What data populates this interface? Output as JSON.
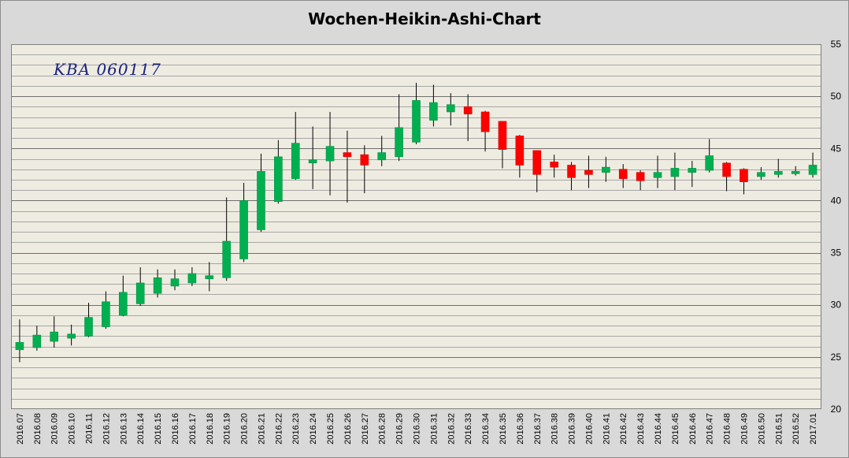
{
  "chart_data": {
    "type": "candlestick",
    "title": "Wochen-Heikin-Ashi-Chart",
    "annotation": "KBA 060117",
    "ylim": [
      20,
      55
    ],
    "y_ticks": [
      20,
      25,
      30,
      35,
      40,
      45,
      50,
      55
    ],
    "y_axis_side": "right",
    "grid": true,
    "colors": {
      "up": "#00b050",
      "down": "#ff0000",
      "background": "#eeece1",
      "frame": "#d9d9d9",
      "grid": "#7f7f7f"
    },
    "categories": [
      "2016.07",
      "2016.08",
      "2016.09",
      "2016.10",
      "2016.11",
      "2016.12",
      "2016.13",
      "2016.14",
      "2016.15",
      "2016.16",
      "2016.17",
      "2016.18",
      "2016.19",
      "2016.20",
      "2016.21",
      "2016.22",
      "2016.23",
      "2016.24",
      "2016.25",
      "2016.26",
      "2016.27",
      "2016.28",
      "2016.29",
      "2016.30",
      "2016.31",
      "2016.32",
      "2016.33",
      "2016.34",
      "2016.35",
      "2016.36",
      "2016.37",
      "2016.38",
      "2016.39",
      "2016.40",
      "2016.41",
      "2016.42",
      "2016.43",
      "2016.44",
      "2016.45",
      "2016.46",
      "2016.47",
      "2016.48",
      "2016.49",
      "2016.50",
      "2016.51",
      "2016.52",
      "2017.01"
    ],
    "open": [
      25.7,
      25.9,
      26.5,
      26.8,
      27.0,
      27.9,
      29.0,
      30.1,
      31.1,
      31.8,
      32.1,
      32.5,
      32.6,
      34.4,
      37.2,
      39.9,
      42.1,
      43.6,
      43.8,
      44.6,
      44.4,
      43.9,
      44.2,
      45.6,
      47.7,
      48.5,
      49.0,
      48.5,
      47.6,
      46.2,
      44.8,
      43.7,
      43.4,
      42.9,
      42.7,
      43.0,
      42.7,
      42.2,
      42.3,
      42.7,
      42.9,
      43.6,
      43.0,
      42.3,
      42.5,
      42.6,
      42.5
    ],
    "close": [
      26.4,
      27.1,
      27.4,
      27.2,
      28.8,
      30.3,
      31.2,
      32.1,
      32.6,
      32.5,
      33.0,
      32.8,
      36.1,
      40.0,
      42.8,
      44.2,
      45.5,
      43.9,
      45.2,
      44.2,
      43.4,
      44.6,
      47.0,
      49.6,
      49.4,
      49.2,
      48.3,
      46.6,
      44.9,
      43.4,
      42.5,
      43.2,
      42.2,
      42.5,
      43.2,
      42.1,
      41.9,
      42.7,
      43.1,
      43.1,
      44.3,
      42.3,
      41.8,
      42.7,
      42.8,
      42.8,
      43.4
    ],
    "high": [
      28.6,
      28.0,
      28.9,
      28.1,
      30.2,
      31.3,
      32.8,
      33.6,
      33.4,
      33.4,
      33.6,
      34.1,
      40.3,
      41.7,
      44.5,
      45.8,
      48.5,
      47.1,
      48.5,
      46.7,
      45.3,
      46.2,
      50.2,
      51.3,
      51.1,
      50.3,
      50.2,
      48.6,
      47.6,
      46.3,
      44.8,
      44.4,
      43.7,
      44.3,
      44.2,
      43.5,
      42.9,
      44.3,
      44.6,
      43.8,
      45.9,
      43.7,
      43.1,
      43.2,
      44.0,
      43.3,
      44.6
    ],
    "low": [
      24.5,
      25.6,
      25.9,
      26.1,
      26.9,
      27.7,
      28.9,
      29.9,
      30.7,
      31.4,
      31.8,
      31.3,
      32.3,
      34.1,
      37.0,
      39.7,
      42.0,
      41.1,
      40.5,
      39.8,
      40.7,
      43.3,
      43.8,
      45.4,
      47.1,
      47.2,
      45.7,
      44.7,
      43.1,
      42.2,
      40.8,
      42.2,
      41.0,
      41.2,
      41.8,
      41.2,
      41.0,
      41.2,
      41.0,
      41.3,
      42.7,
      40.9,
      40.6,
      42.0,
      42.2,
      42.4,
      42.2
    ]
  }
}
